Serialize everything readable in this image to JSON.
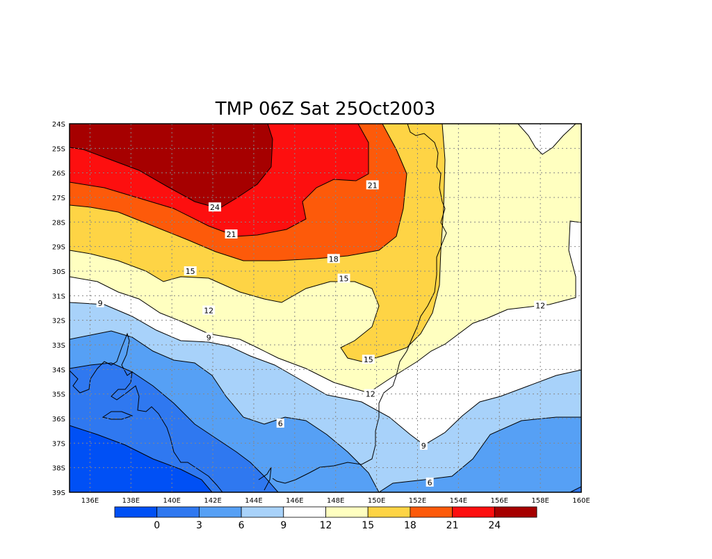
{
  "title": "TMP 06Z Sat 25Oct2003",
  "map": {
    "lat_labels": [
      "24S",
      "25S",
      "26S",
      "27S",
      "28S",
      "29S",
      "30S",
      "31S",
      "32S",
      "33S",
      "34S",
      "35S",
      "36S",
      "37S",
      "38S",
      "39S"
    ],
    "lon_labels": [
      "136E",
      "138E",
      "140E",
      "142E",
      "144E",
      "146E",
      "148E",
      "150E",
      "152E",
      "154E",
      "156E",
      "158E",
      "160E"
    ],
    "lon_range": [
      135,
      160
    ],
    "lat_range": [
      -39,
      -24
    ],
    "grid": "dotted",
    "contour_labels": [
      {
        "text": "24",
        "lon": 142.1,
        "lat": -27.4
      },
      {
        "text": "21",
        "lon": 142.9,
        "lat": -28.5
      },
      {
        "text": "21",
        "lon": 149.8,
        "lat": -26.5
      },
      {
        "text": "18",
        "lon": 147.9,
        "lat": -29.5
      },
      {
        "text": "15",
        "lon": 140.9,
        "lat": -30.0
      },
      {
        "text": "15",
        "lon": 148.4,
        "lat": -30.3
      },
      {
        "text": "15",
        "lon": 149.6,
        "lat": -33.6
      },
      {
        "text": "12",
        "lon": 141.8,
        "lat": -31.6
      },
      {
        "text": "12",
        "lon": 149.7,
        "lat": -35.0
      },
      {
        "text": "12",
        "lon": 158.0,
        "lat": -31.4
      },
      {
        "text": "9",
        "lon": 136.5,
        "lat": -31.3
      },
      {
        "text": "9",
        "lon": 141.8,
        "lat": -32.7
      },
      {
        "text": "9",
        "lon": 152.3,
        "lat": -37.1
      },
      {
        "text": "6",
        "lon": 145.3,
        "lat": -36.2
      },
      {
        "text": "6",
        "lon": 152.6,
        "lat": -38.6
      }
    ]
  },
  "colorbar": {
    "colors": [
      "#0050f5",
      "#2f78f0",
      "#56a0f5",
      "#a8d2fa",
      "#ffffff",
      "#ffffc0",
      "#fed445",
      "#fd5a0a",
      "#fd0f0f",
      "#a60000"
    ],
    "labels": [
      "0",
      "3",
      "6",
      "9",
      "12",
      "15",
      "18",
      "21",
      "24"
    ]
  }
}
